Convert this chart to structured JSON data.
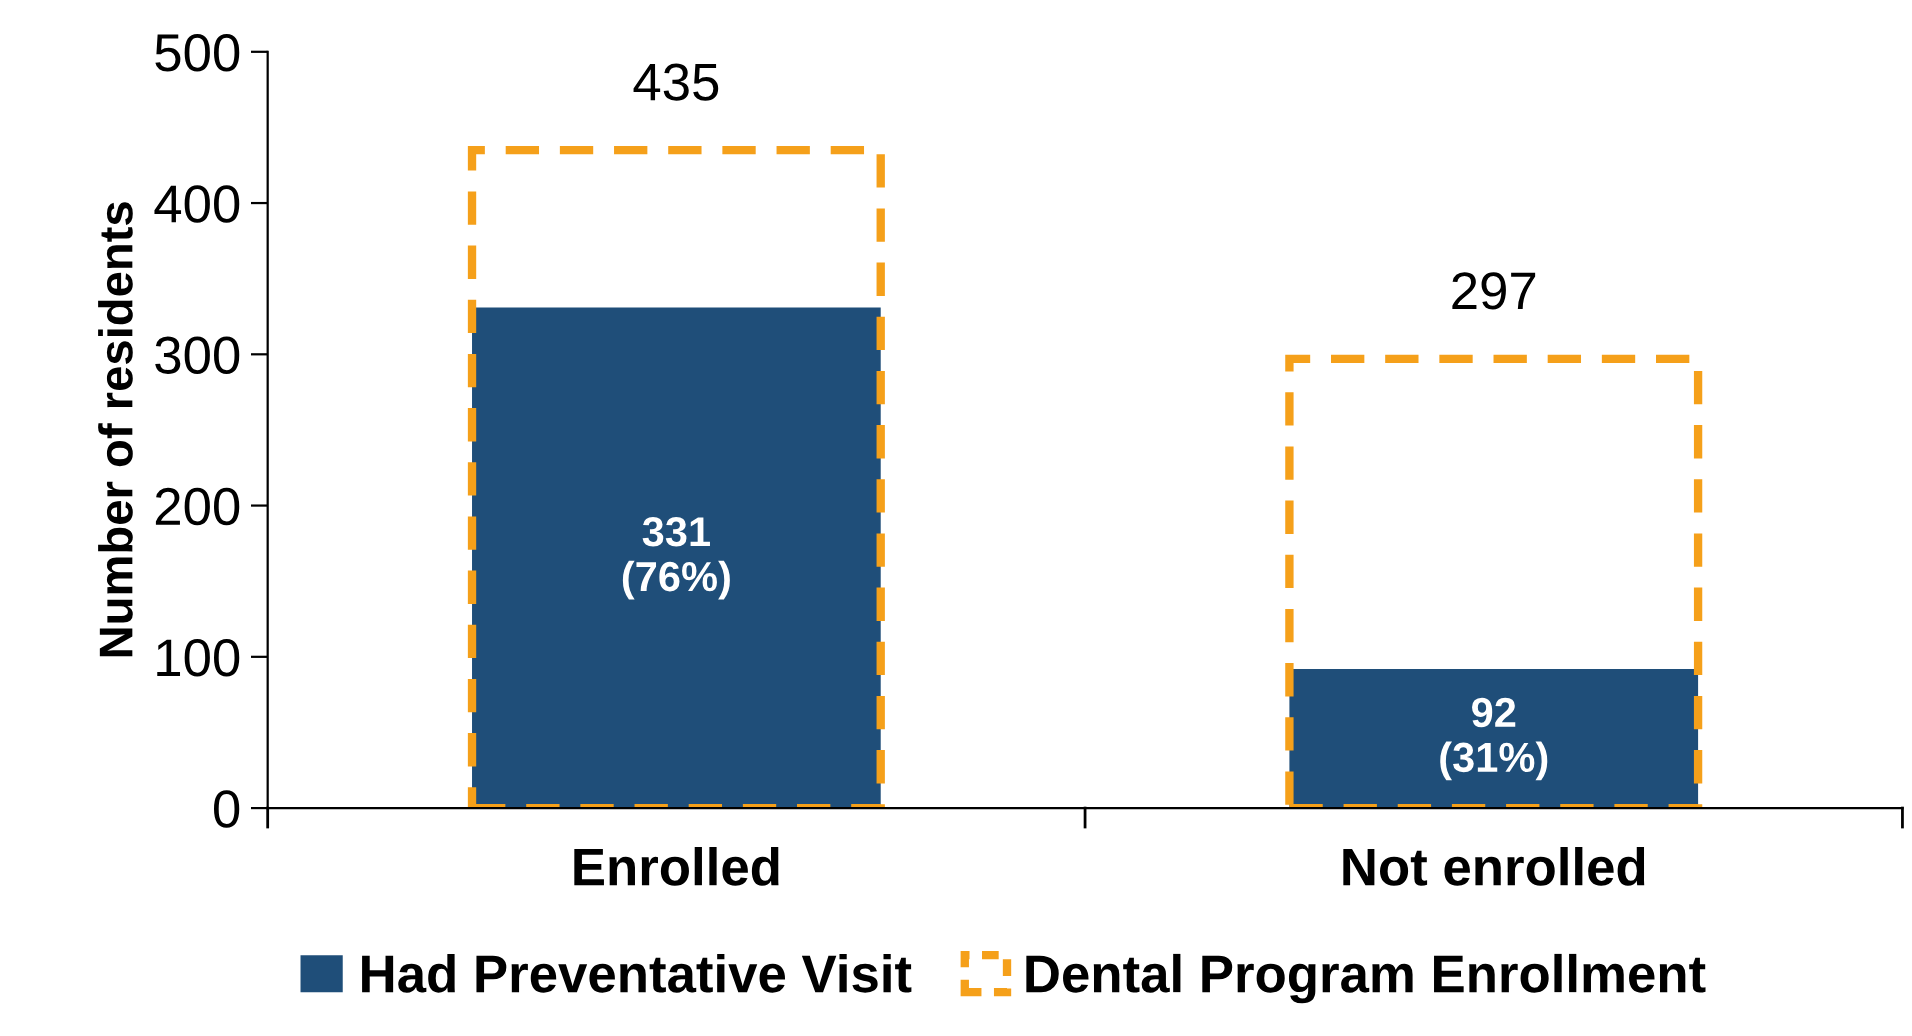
{
  "chart_data": {
    "type": "bar",
    "ylabel": "Number of residents",
    "categories": [
      "Enrolled",
      "Not enrolled"
    ],
    "series": [
      {
        "name": "Had Preventative Visit",
        "color": "#1f4e79",
        "line_style": "solid",
        "values": [
          331,
          92
        ],
        "value_labels": [
          "331\n(76%)",
          "92\n(31%)"
        ]
      },
      {
        "name": "Dental Program Enrollment",
        "color": "#f5a01a",
        "line_style": "dashed",
        "values": [
          435,
          297
        ],
        "value_labels": [
          "435",
          "297"
        ]
      }
    ],
    "ylim": [
      0,
      500
    ],
    "yticks": [
      0,
      100,
      200,
      300,
      400,
      500
    ],
    "grid": false,
    "legend": "bottom"
  }
}
